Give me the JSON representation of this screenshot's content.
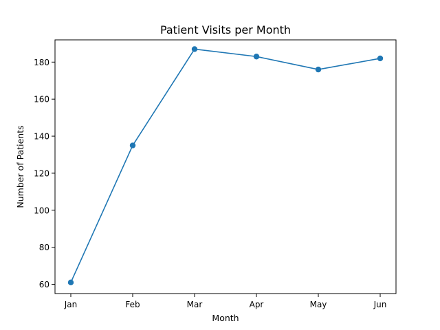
{
  "chart_data": {
    "type": "line",
    "title": "Patient Visits per Month",
    "xlabel": "Month",
    "ylabel": "Number of Patients",
    "categories": [
      "Jan",
      "Feb",
      "Mar",
      "Apr",
      "May",
      "Jun"
    ],
    "series": [
      {
        "values": [
          61,
          135,
          187,
          183,
          176,
          182
        ]
      }
    ],
    "ylim": [
      55,
      192
    ],
    "yticks": [
      60,
      80,
      100,
      120,
      140,
      160,
      180
    ],
    "grid": false,
    "marker": "circle",
    "colors": {
      "series": "#1f77b4",
      "axes": "#000000",
      "background": "#ffffff"
    }
  }
}
